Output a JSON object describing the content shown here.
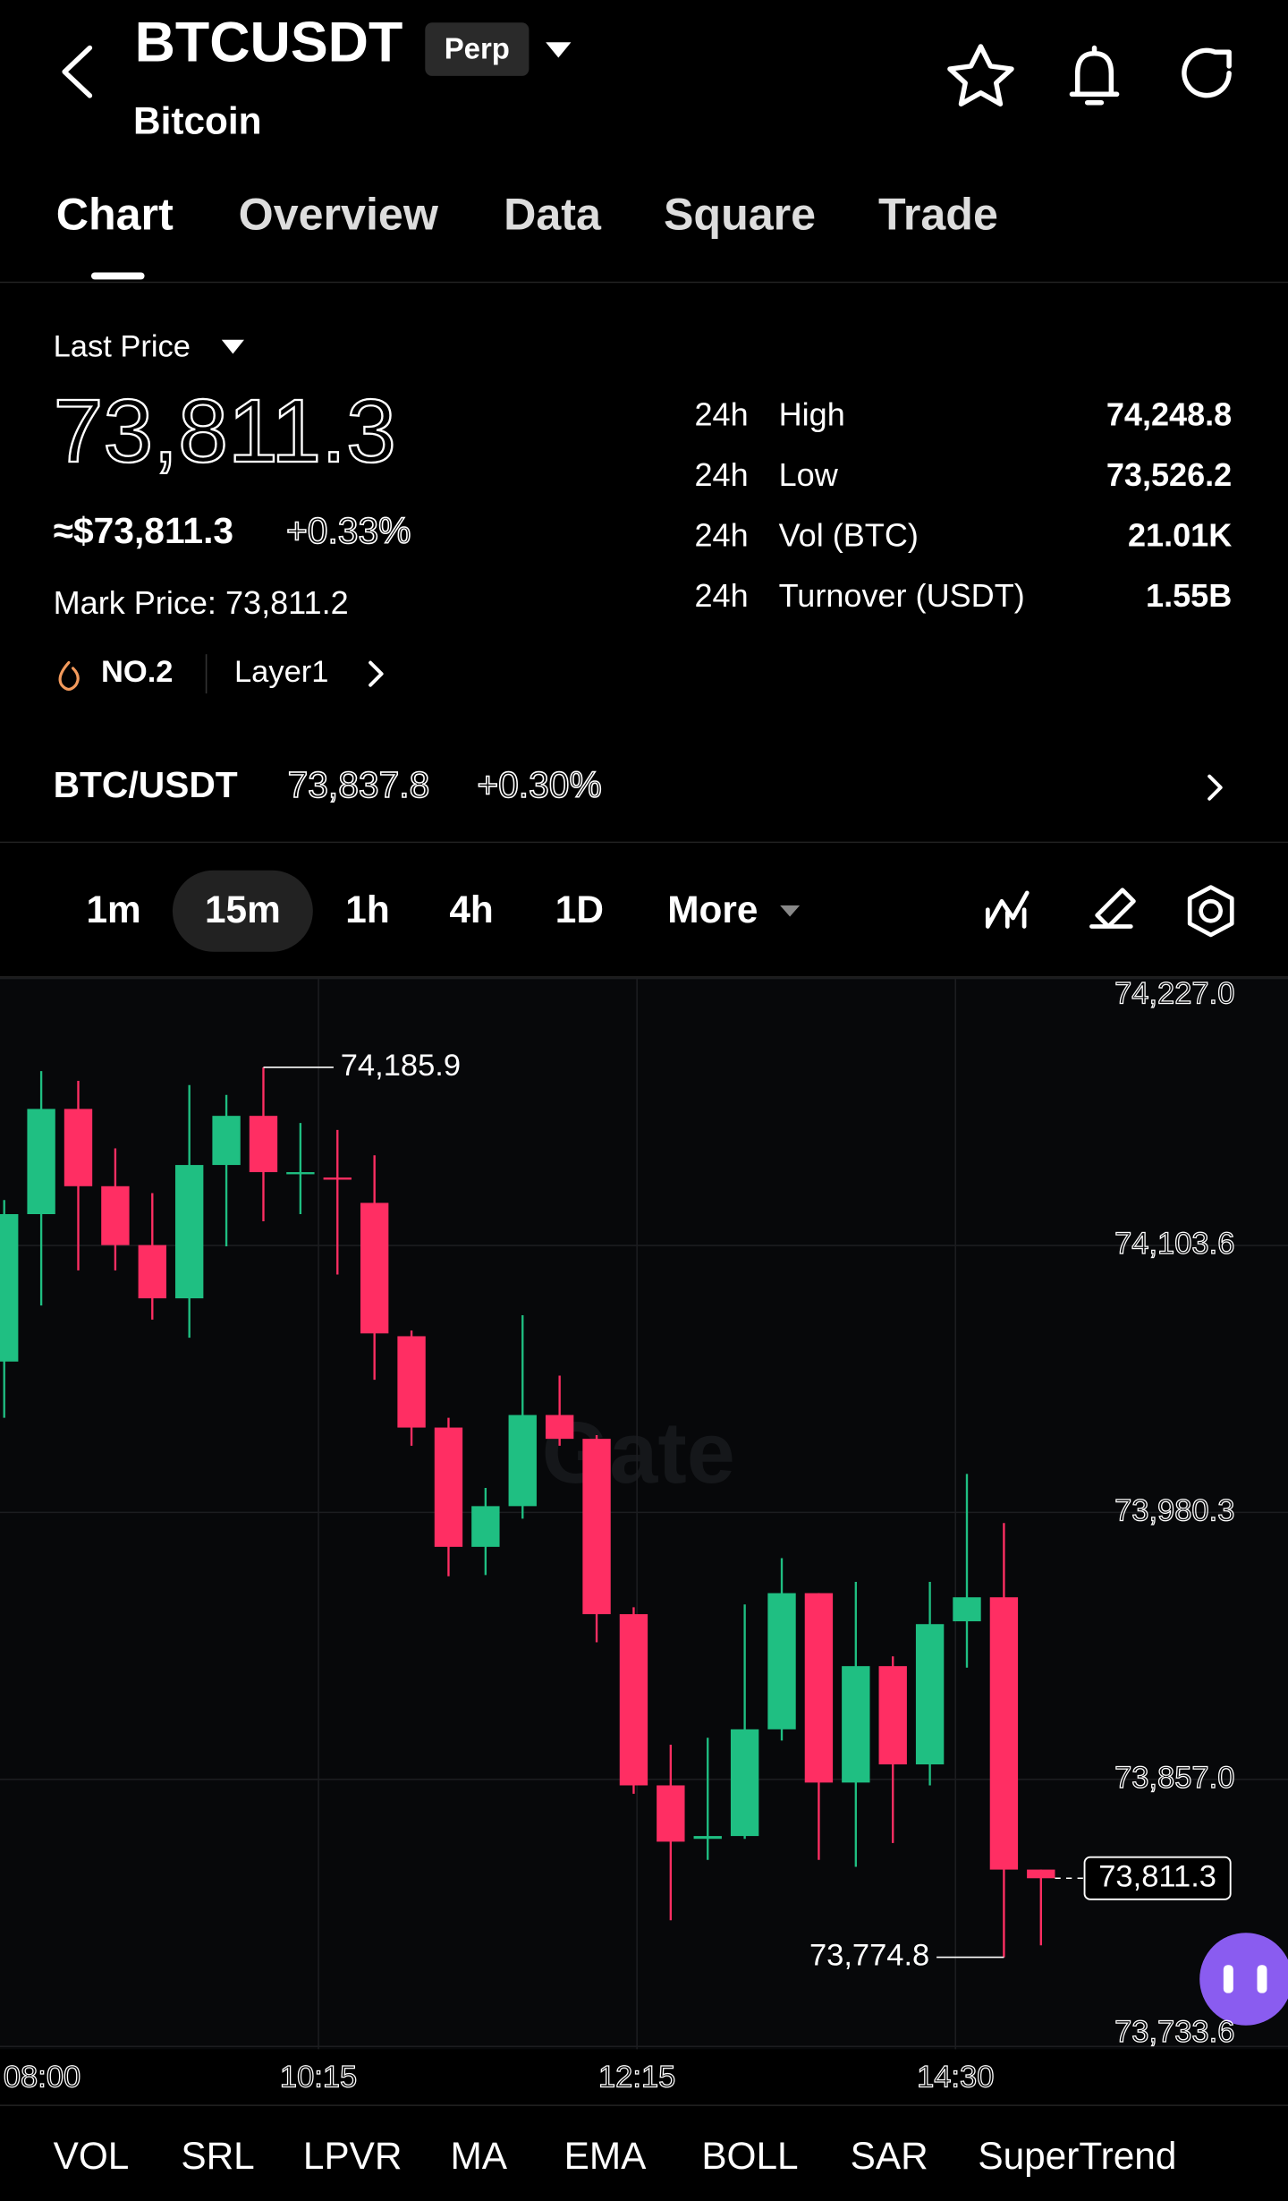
{
  "header": {
    "symbol": "BTCUSDT",
    "badge": "Perp",
    "name": "Bitcoin"
  },
  "tabs": [
    "Chart",
    "Overview",
    "Data",
    "Square",
    "Trade"
  ],
  "price": {
    "label": "Last Price",
    "last": "73,811.3",
    "usd": "≈$73,811.3",
    "change": "+0.33%",
    "mark": "Mark Price: 73,811.2",
    "rank": "NO.2",
    "tag": "Layer1"
  },
  "stats": [
    {
      "period": "24h",
      "label": "High",
      "value": "74,248.8"
    },
    {
      "period": "24h",
      "label": "Low",
      "value": "73,526.2"
    },
    {
      "period": "24h",
      "label": "Vol (BTC)",
      "value": "21.01K"
    },
    {
      "period": "24h",
      "label": "Turnover (USDT)",
      "value": "1.55B"
    }
  ],
  "spot": {
    "pair": "BTC/USDT",
    "price": "73,837.8",
    "change": "+0.30%"
  },
  "timeframes": [
    "1m",
    "15m",
    "1h",
    "4h",
    "1D",
    "More"
  ],
  "chart_data": {
    "type": "candlestick",
    "watermark": "Gate",
    "open": [
      74050.0,
      74118.1,
      74166.7,
      74131.0,
      74103.8,
      74079.2,
      74140.8,
      74163.5,
      74137.5,
      74135.0,
      74123.3,
      74061.7,
      74019.5,
      73964.4,
      73983.2,
      74025.3,
      74014.3,
      73933.3,
      73854.2,
      73829.5,
      73830.8,
      73880.1,
      73943.0,
      73855.5,
      73909.3,
      73863.9,
      73930.0,
      73941.1,
      73815.3
    ],
    "high": [
      74124.6,
      74184.2,
      74179.7,
      74148.5,
      74127.8,
      74177.7,
      74173.2,
      74185.9,
      74160.2,
      74157.0,
      74145.3,
      74064.3,
      74024.0,
      73991.6,
      74071.4,
      74043.5,
      74016.0,
      73936.5,
      73873.0,
      73876.2,
      73937.8,
      73959.2,
      73943.0,
      73948.2,
      73913.8,
      73948.2,
      73998.1,
      73975.4,
      73815.3
    ],
    "low": [
      74024.0,
      74075.9,
      74092.1,
      74092.1,
      74069.4,
      74061.0,
      74103.2,
      74114.8,
      74118.1,
      74090.2,
      74041.6,
      74011.1,
      73950.8,
      73951.4,
      73977.4,
      74011.1,
      73920.3,
      73850.3,
      73791.9,
      73819.8,
      73829.5,
      73874.9,
      73819.8,
      73816.6,
      73827.6,
      73854.2,
      73908.6,
      73774.8,
      73780.3
    ],
    "close": [
      74118.1,
      74166.7,
      74131.0,
      74103.8,
      74079.2,
      74140.8,
      74163.5,
      74137.5,
      74137.5,
      74134.3,
      74063.0,
      74019.5,
      73964.4,
      73983.2,
      74025.3,
      74014.3,
      73933.3,
      73854.2,
      73828.2,
      73830.8,
      73880.1,
      73943.0,
      73855.5,
      73909.3,
      73863.9,
      73928.7,
      73941.1,
      73815.3,
      73811.3
    ],
    "up_color": "#1fbf82",
    "down_color": "#ff2e63",
    "ylim": [
      73733.6,
      74227.0
    ],
    "yticks": [
      {
        "value": 74227.0,
        "label": "74,227.0"
      },
      {
        "value": 74103.6,
        "label": "74,103.6"
      },
      {
        "value": 73980.3,
        "label": "73,980.3"
      },
      {
        "value": 73857.0,
        "label": "73,857.0"
      },
      {
        "value": 73733.6,
        "label": "73,733.6"
      }
    ],
    "xtick_labels": [
      "08:00",
      "10:15",
      "12:15",
      "14:30"
    ],
    "high_label": "74,185.9",
    "low_label": "73,774.8",
    "last_label": "73,811.3",
    "grid": true
  },
  "indicators": [
    "VOL",
    "SRL",
    "LPVR",
    "MA",
    "EMA",
    "BOLL",
    "SAR",
    "SuperTrend"
  ]
}
